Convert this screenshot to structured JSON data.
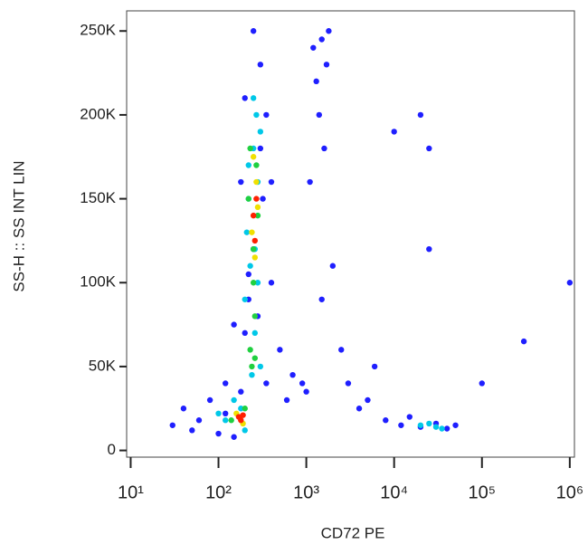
{
  "chart_data": {
    "type": "scatter",
    "x_label": "CD72 PE",
    "y_label": "SS-H :: SS INT LIN",
    "xscale": "log",
    "xlim": [
      9,
      1130000
    ],
    "ylim": [
      -4000,
      262000
    ],
    "xticks": [
      {
        "value": 10,
        "label": "10¹"
      },
      {
        "value": 100,
        "label": "10²"
      },
      {
        "value": 1000,
        "label": "10³"
      },
      {
        "value": 10000,
        "label": "10⁴"
      },
      {
        "value": 100000,
        "label": "10⁵"
      },
      {
        "value": 1000000,
        "label": "10⁶"
      }
    ],
    "yticks": [
      0,
      {
        "value": 50000,
        "label": "50K"
      },
      {
        "value": 100000,
        "label": "100K"
      },
      {
        "value": 150000,
        "label": "150K"
      },
      {
        "value": 200000,
        "label": "200K"
      },
      {
        "value": 250000,
        "label": "250K"
      }
    ],
    "series": [
      {
        "color": "#1f1fff",
        "x": [
          30,
          40,
          50,
          60,
          80,
          100,
          120,
          150,
          180,
          200,
          220,
          250,
          300,
          350,
          400,
          500,
          700,
          1000,
          1200,
          1500,
          1300,
          1600,
          1800,
          1400,
          2000,
          3000,
          5000,
          8000,
          12000,
          20000,
          30000,
          40000,
          15000,
          25000,
          10000,
          6000,
          4000,
          2500,
          1500,
          900,
          600,
          400,
          300,
          200,
          150,
          120,
          250,
          320,
          280,
          220,
          180,
          350,
          1100,
          1700,
          50000,
          100000,
          300000,
          20000,
          25000,
          1000000
        ],
        "values": [
          15000,
          25000,
          12000,
          18000,
          30000,
          10000,
          22000,
          8000,
          35000,
          70000,
          90000,
          120000,
          180000,
          200000,
          160000,
          60000,
          45000,
          35000,
          240000,
          245000,
          220000,
          180000,
          250000,
          200000,
          110000,
          40000,
          30000,
          18000,
          15000,
          14000,
          16000,
          13000,
          20000,
          120000,
          190000,
          50000,
          25000,
          60000,
          90000,
          40000,
          30000,
          100000,
          230000,
          210000,
          75000,
          40000,
          250000,
          150000,
          80000,
          105000,
          160000,
          40000,
          160000,
          230000,
          15000,
          40000,
          65000,
          200000,
          180000,
          100000
        ]
      },
      {
        "color": "#00c8e8",
        "x": [
          150,
          200,
          250,
          300,
          200,
          230,
          270,
          280,
          220,
          260,
          240,
          300,
          210,
          180,
          120,
          100,
          250,
          280,
          20000,
          30000,
          25000,
          35000,
          220,
          260
        ],
        "values": [
          30000,
          12000,
          180000,
          190000,
          90000,
          110000,
          200000,
          160000,
          170000,
          70000,
          45000,
          50000,
          130000,
          25000,
          18000,
          22000,
          210000,
          100000,
          15000,
          14000,
          16000,
          13000,
          150000,
          120000
        ]
      },
      {
        "color": "#20d040",
        "x": [
          230,
          260,
          240,
          270,
          250,
          220,
          280,
          140,
          200,
          250,
          230,
          260
        ],
        "values": [
          60000,
          55000,
          50000,
          170000,
          100000,
          150000,
          140000,
          18000,
          25000,
          120000,
          180000,
          80000
        ]
      },
      {
        "color": "#f0e000",
        "x": [
          240,
          270,
          250,
          280,
          160,
          190,
          260
        ],
        "values": [
          130000,
          160000,
          175000,
          145000,
          22000,
          16000,
          115000
        ]
      },
      {
        "color": "#ff2000",
        "x": [
          250,
          270,
          260,
          170,
          180,
          190
        ],
        "values": [
          140000,
          150000,
          125000,
          20000,
          18000,
          21000
        ]
      }
    ]
  }
}
